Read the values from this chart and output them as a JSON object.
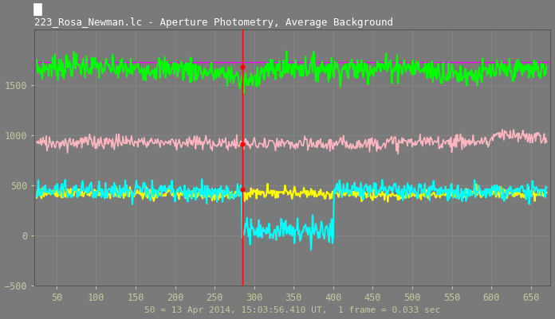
{
  "title": "223_Rosa_Newman.lc - Aperture Photometry, Average Background",
  "xlabel_note": "50 = 13 Apr 2014, 15:03:56.410 UT,  1 frame = 0.033 sec",
  "background_color": "#7a7a7a",
  "plot_bg_color": "#7a7a7a",
  "grid_color": "#8a8a8a",
  "text_color": "#ffffff",
  "title_color": "#ffffff",
  "tick_color": "#c8c8a0",
  "xlim": [
    22,
    675
  ],
  "ylim": [
    -500,
    2050
  ],
  "yticks": [
    -500,
    0,
    500,
    1000,
    1500
  ],
  "xticks": [
    50,
    100,
    150,
    200,
    250,
    300,
    350,
    400,
    450,
    500,
    550,
    600,
    650
  ],
  "vline_x": 285,
  "vline_color": "#ff0000",
  "green_mean": 1650,
  "green_spread": 60,
  "pink_mean": 920,
  "pink_spread": 35,
  "cyan_mean": 440,
  "cyan_spread": 45,
  "yellow_mean": 415,
  "yellow_spread": 25,
  "occ_start_x": 285,
  "occ_end_x": 400,
  "cyan_occ_mean": 50,
  "cyan_occ_spread": 60,
  "magenta_y": 1730,
  "seed": 7
}
